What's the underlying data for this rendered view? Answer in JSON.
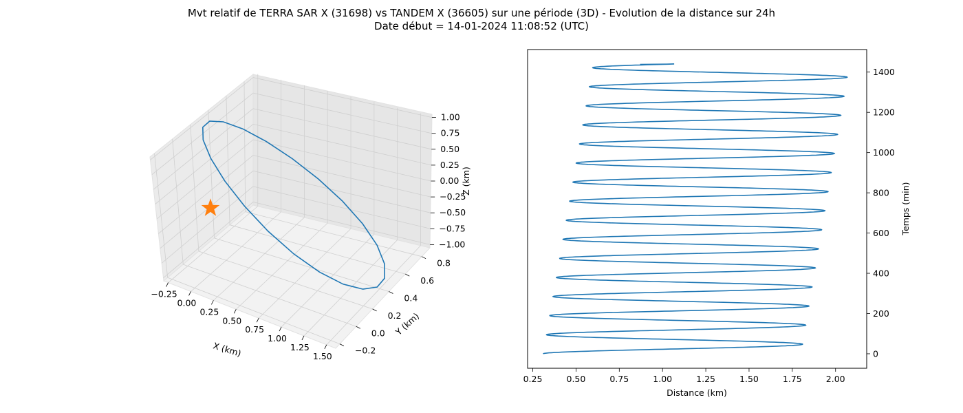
{
  "chart_data": [
    {
      "type": "line3d",
      "title": "Mvt relatif de TERRA SAR X (31698) vs TANDEM X (36605) sur une période (3D) - Evolution de la distance sur 24h",
      "subtitle": "Date début = 14-01-2024 11:08:52 (UTC)",
      "xlabel": "X (km)",
      "ylabel": "Y (km)",
      "zlabel": "Z (km)",
      "xticks": [
        "−0.25",
        "0.00",
        "0.25",
        "0.50",
        "0.75",
        "1.00",
        "1.25",
        "1.50"
      ],
      "yticks": [
        "−0.2",
        "0.0",
        "0.2",
        "0.4",
        "0.6",
        "0.8"
      ],
      "zticks": [
        "−1.00",
        "−0.75",
        "−0.50",
        "−0.25",
        "0.00",
        "0.25",
        "0.50",
        "0.75",
        "1.00"
      ],
      "xlim": [
        -0.3,
        1.6
      ],
      "ylim": [
        -0.25,
        0.9
      ],
      "zlim": [
        -1.05,
        1.05
      ],
      "grid": true,
      "series_color": "#1f77b4",
      "marker_color": "#ff7f0e",
      "marker": {
        "shape": "star",
        "x": 0.0,
        "y": 0.0,
        "z": 0.0
      },
      "orbit": {
        "x_center": 0.63,
        "x_amp": 0.9,
        "y_center": 0.32,
        "y_amp": 0.5,
        "z_amp": 1.0,
        "segments": 22
      }
    },
    {
      "type": "line",
      "xlabel": "Distance (km)",
      "ylabel": "Temps (min)",
      "xlim": [
        0.22,
        2.18
      ],
      "ylim": [
        -72,
        1512
      ],
      "xticks": [
        0.25,
        0.5,
        0.75,
        1.0,
        1.25,
        1.5,
        1.75,
        2.0
      ],
      "xtick_labels": [
        "0.25",
        "0.50",
        "0.75",
        "1.00",
        "1.25",
        "1.50",
        "1.75",
        "2.00"
      ],
      "yticks": [
        0,
        200,
        400,
        600,
        800,
        1000,
        1200,
        1400
      ],
      "ytick_labels": [
        "0",
        "200",
        "400",
        "600",
        "800",
        "1000",
        "1200",
        "1400"
      ],
      "series_color": "#1f77b4",
      "distance_model": {
        "t_end_min": 1440,
        "period_min": 94.8,
        "min_start": 0.31,
        "min_end": 0.6,
        "max_start": 1.8,
        "max_end": 2.08,
        "last_value": 0.87
      }
    }
  ]
}
